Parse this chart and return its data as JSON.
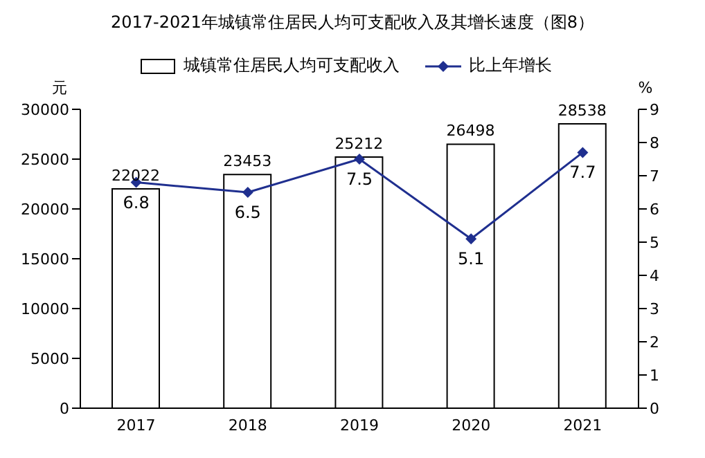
{
  "chart_data": {
    "type": "bar",
    "title": "2017-2021年城镇常住居民人均可支配收入及其增长速度（图8）",
    "categories": [
      "2017",
      "2018",
      "2019",
      "2020",
      "2021"
    ],
    "series": [
      {
        "name": "城镇常住居民人均可支配收入",
        "color": "#ffffff",
        "values": [
          22022,
          23453,
          25212,
          26498,
          28538
        ]
      },
      {
        "name": "比上年增长",
        "type": "line",
        "color": "#1f2f8f",
        "axis": "y2",
        "values": [
          6.8,
          6.5,
          7.5,
          5.1,
          7.7
        ]
      }
    ],
    "ylabel": "元",
    "y2label": "%",
    "ylim": [
      0,
      30000
    ],
    "yticks": [
      0,
      5000,
      10000,
      15000,
      20000,
      25000,
      30000
    ],
    "y2lim": [
      0,
      9
    ],
    "y2ticks": [
      0,
      1,
      2,
      3,
      4,
      5,
      6,
      7,
      8,
      9
    ],
    "data_labels": true,
    "legend": "top",
    "marker": "diamond"
  }
}
